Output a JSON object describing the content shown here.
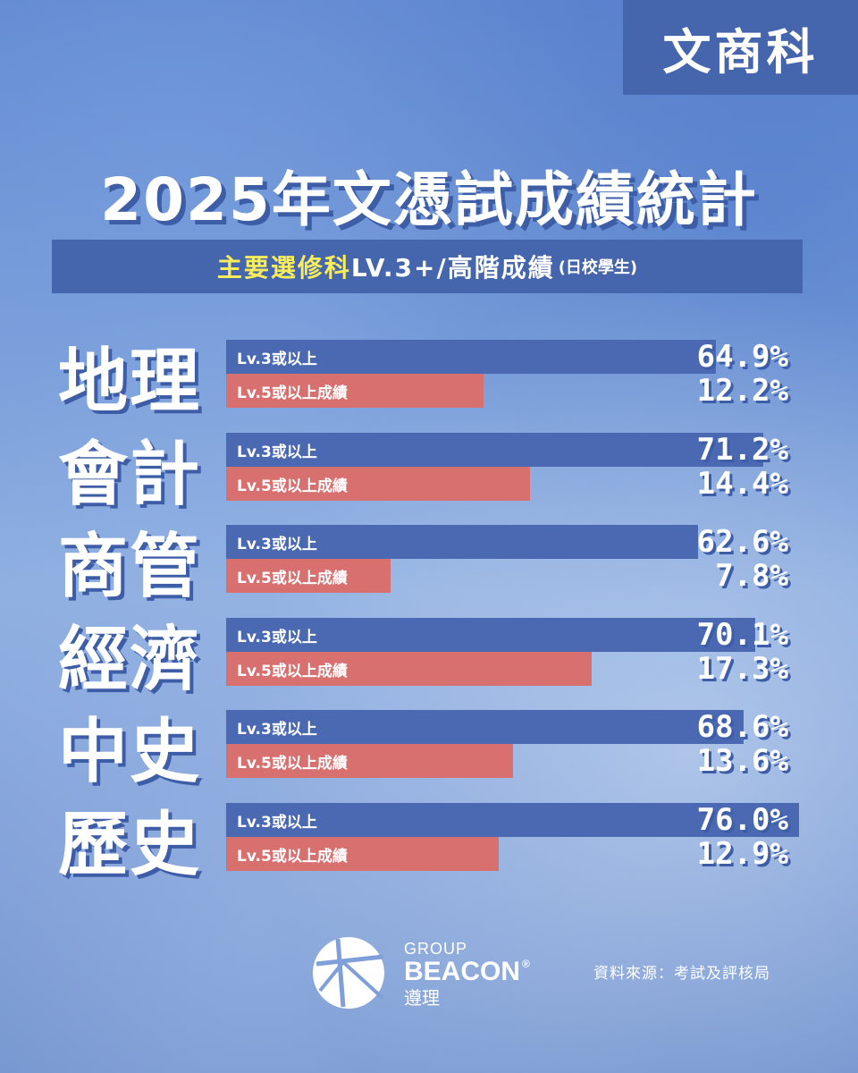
{
  "corner_tag": "文商科",
  "title": "2025年文憑試成績統計",
  "subtitle": {
    "highlight": "主要選修科",
    "rest": "LV.3+/高階成績",
    "small": "(日校學生)"
  },
  "chart_data": {
    "type": "bar",
    "orientation": "horizontal",
    "categories": [
      "地理",
      "會計",
      "商管",
      "經濟",
      "中史",
      "歷史"
    ],
    "series": [
      {
        "name": "Lv.3或以上",
        "color": "#4a69b2",
        "values": [
          64.9,
          71.2,
          62.6,
          70.1,
          68.6,
          76.0
        ]
      },
      {
        "name": "Lv.5或以上成績",
        "color": "#d87070",
        "values": [
          12.2,
          14.4,
          7.8,
          17.3,
          13.6,
          12.9
        ]
      }
    ],
    "value_labels": [
      [
        "64.9%",
        "12.2%"
      ],
      [
        "71.2%",
        "14.4%"
      ],
      [
        "62.6%",
        "7.8%"
      ],
      [
        "70.1%",
        "17.3%"
      ],
      [
        "68.6%",
        "13.6%"
      ],
      [
        "76.0%",
        "12.9%"
      ]
    ],
    "unit": "%"
  },
  "footer": {
    "brand_top": "GROUP",
    "brand_main": "BEACON",
    "brand_reg": "®",
    "brand_cn": "遵理",
    "source": "資料來源：考試及評核局"
  }
}
